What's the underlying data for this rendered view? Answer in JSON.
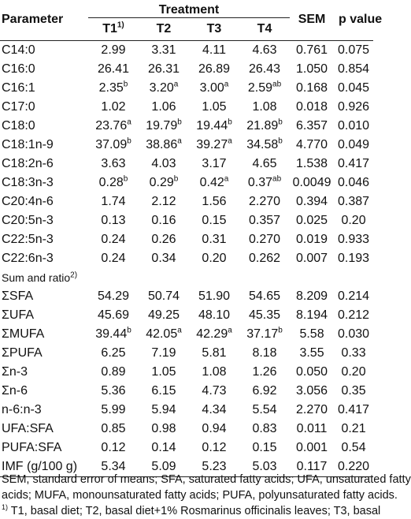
{
  "header": {
    "parameter": "Parameter",
    "treatment": "Treatment",
    "t1": "T1",
    "t1_sup": "1)",
    "t2": "T2",
    "t3": "T3",
    "t4": "T4",
    "sem": "SEM",
    "p_value": "p value"
  },
  "rows": [
    {
      "param": "C14:0",
      "t1": "2.99",
      "t2": "3.31",
      "t3": "4.11",
      "t4": "4.63",
      "sem": "0.761",
      "p": "0.075"
    },
    {
      "param": "C16:0",
      "t1": "26.41",
      "t2": "26.31",
      "t3": "26.89",
      "t4": "26.43",
      "sem": "1.050",
      "p": "0.854"
    },
    {
      "param": "C16:1",
      "t1": "2.35",
      "t1_sup": "b",
      "t2": "3.20",
      "t2_sup": "a",
      "t3": "3.00",
      "t3_sup": "a",
      "t4": "2.59",
      "t4_sup": "ab",
      "sem": "0.168",
      "p": "0.045"
    },
    {
      "param": "C17:0",
      "t1": "1.02",
      "t2": "1.06",
      "t3": "1.05",
      "t4": "1.08",
      "sem": "0.018",
      "p": "0.926"
    },
    {
      "param": "C18:0",
      "t1": "23.76",
      "t1_sup": "a",
      "t2": "19.79",
      "t2_sup": "b",
      "t3": "19.44",
      "t3_sup": "b",
      "t4": "21.89",
      "t4_sup": "b",
      "sem": "6.357",
      "p": "0.010"
    },
    {
      "param": "C18:1n-9",
      "t1": "37.09",
      "t1_sup": "b",
      "t2": "38.86",
      "t2_sup": "a",
      "t3": "39.27",
      "t3_sup": "a",
      "t4": "34.58",
      "t4_sup": "b",
      "sem": "4.770",
      "p": "0.049"
    },
    {
      "param": "C18:2n-6",
      "t1": "3.63",
      "t2": "4.03",
      "t3": "3.17",
      "t4": "4.65",
      "sem": "1.538",
      "p": "0.417"
    },
    {
      "param": "C18:3n-3",
      "t1": "0.28",
      "t1_sup": "b",
      "t2": "0.29",
      "t2_sup": "b",
      "t3": "0.42",
      "t3_sup": "a",
      "t4": "0.37",
      "t4_sup": "ab",
      "sem": "0.0049",
      "p": "0.046"
    },
    {
      "param": "C20:4n-6",
      "t1": "1.74",
      "t2": "2.12",
      "t3": "1.56",
      "t4": "2.270",
      "sem": "0.394",
      "p": "0.387"
    },
    {
      "param": "C20:5n-3",
      "t1": "0.13",
      "t2": "0.16",
      "t3": "0.15",
      "t4": "0.357",
      "sem": "0.025",
      "p": "0.20"
    },
    {
      "param": "C22:5n-3",
      "t1": "0.24",
      "t2": "0.26",
      "t3": "0.31",
      "t4": "0.270",
      "sem": "0.019",
      "p": "0.933"
    },
    {
      "param": "C22:6n-3",
      "t1": "0.24",
      "t2": "0.34",
      "t3": "0.20",
      "t4": "0.262",
      "sem": "0.007",
      "p": "0.193"
    }
  ],
  "section_label": "Sum and ratio",
  "section_sup": "2)",
  "rows2": [
    {
      "param": "ΣSFA",
      "t1": "54.29",
      "t2": "50.74",
      "t3": "51.90",
      "t4": "54.65",
      "sem": "8.209",
      "p": "0.214"
    },
    {
      "param": "ΣUFA",
      "t1": "45.69",
      "t2": "49.25",
      "t3": "48.10",
      "t4": "45.35",
      "sem": "8.194",
      "p": "0.212"
    },
    {
      "param": "ΣMUFA",
      "t1": "39.44",
      "t1_sup": "b",
      "t2": "42.05",
      "t2_sup": "a",
      "t3": "42.29",
      "t3_sup": "a",
      "t4": "37.17",
      "t4_sup": "b",
      "sem": "5.58",
      "p": "0.030"
    },
    {
      "param": "ΣPUFA",
      "t1": "6.25",
      "t2": "7.19",
      "t3": "5.81",
      "t4": "8.18",
      "sem": "3.55",
      "p": "0.33"
    },
    {
      "param": "Σn-3",
      "t1": "0.89",
      "t2": "1.05",
      "t3": "1.08",
      "t4": "1.26",
      "sem": "0.050",
      "p": "0.20"
    },
    {
      "param": "Σn-6",
      "t1": "5.36",
      "t2": "6.15",
      "t3": "4.73",
      "t4": "6.92",
      "sem": "3.056",
      "p": "0.35"
    },
    {
      "param": "n-6:n-3",
      "t1": "5.99",
      "t2": "5.94",
      "t3": "4.34",
      "t4": "5.54",
      "sem": "2.270",
      "p": "0.417"
    },
    {
      "param": "UFA:SFA",
      "t1": "0.85",
      "t2": "0.98",
      "t3": "0.94",
      "t4": "0.83",
      "sem": "0.011",
      "p": "0.21"
    },
    {
      "param": "PUFA:SFA",
      "t1": "0.12",
      "t2": "0.14",
      "t3": "0.12",
      "t4": "0.15",
      "sem": "0.001",
      "p": "0.54"
    },
    {
      "param": "IMF (g/100 g)",
      "t1": "5.34",
      "t2": "5.09",
      "t3": "5.23",
      "t4": "5.03",
      "sem": "0.117",
      "p": "0.220"
    }
  ],
  "notes": {
    "line1": "SEM, standard error of means; SFA, saturated fatty acids; UFA, unsaturated fatty",
    "line2": "acids; MUFA, monounsaturated fatty acids; PUFA, polyunsaturated fatty acids.",
    "line3_sup": "1)",
    "line3": " T1, basal diet; T2, basal diet+1% Rosmarinus officinalis leaves; T3, basal"
  }
}
